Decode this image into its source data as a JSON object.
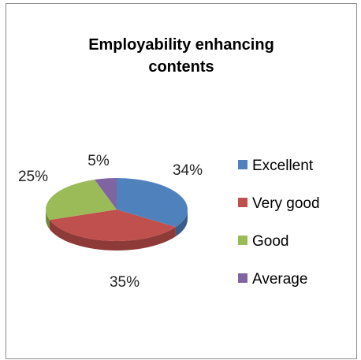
{
  "chart_data": {
    "type": "pie",
    "title_lines": [
      "Employability enhancing",
      "contents"
    ],
    "categories": [
      "Excellent",
      "Very good",
      "Good",
      "Average"
    ],
    "values": [
      34,
      35,
      25,
      5
    ],
    "value_labels": [
      "34%",
      "35%",
      "25%",
      "5%"
    ],
    "colors": [
      "#4f81bd",
      "#c0504d",
      "#9bbb59",
      "#8064a2"
    ],
    "side_colors": [
      "#385d8a",
      "#8e3a38",
      "#71893f",
      "#5c4776"
    ],
    "legend_position": "right",
    "style": "3d"
  }
}
